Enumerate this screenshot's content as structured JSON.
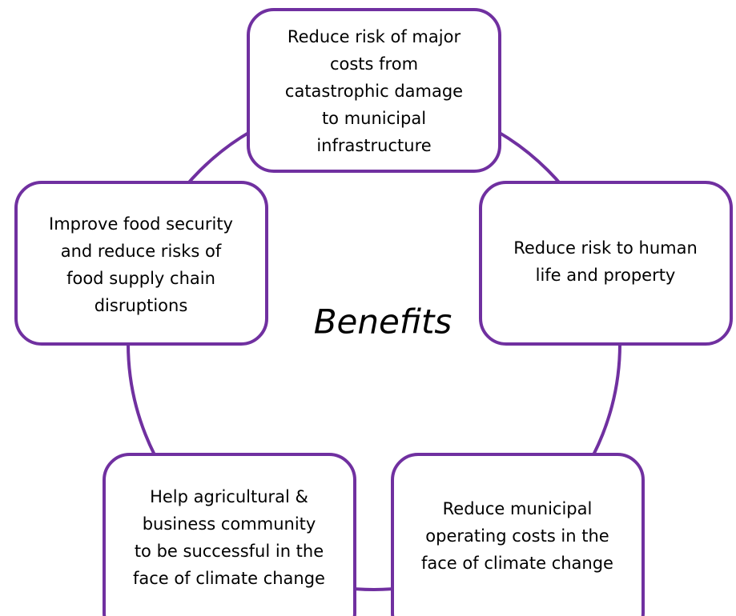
{
  "center_label": "Benefits",
  "nodes": [
    {
      "lines": [
        "Reduce risk of major",
        "costs from",
        "catastrophic damage",
        "to municipal",
        "infrastructure"
      ]
    },
    {
      "lines": [
        "Reduce risk to human",
        "life and property"
      ]
    },
    {
      "lines": [
        "Reduce municipal",
        "operating costs in the",
        "face of climate change"
      ]
    },
    {
      "lines": [
        "Help agricultural &",
        "business community",
        "to be successful in the",
        "face of climate change"
      ]
    },
    {
      "lines": [
        "Improve food security",
        "and reduce risks of",
        "food supply chain",
        "disruptions"
      ]
    }
  ]
}
